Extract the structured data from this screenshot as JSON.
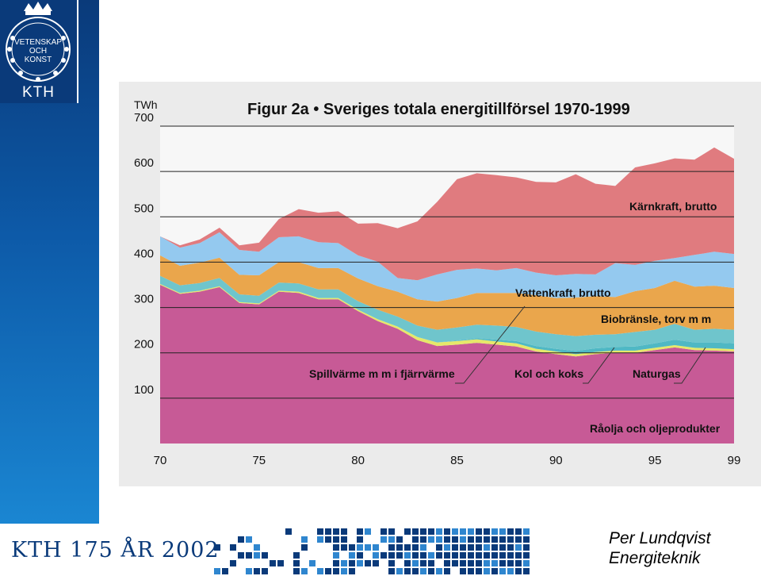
{
  "logo": {
    "ring_text": "VETENSKAP OCH KONST",
    "lines": [
      "VETENSKAP",
      "OCH",
      "KONST"
    ],
    "wordmark": "KTH"
  },
  "footer": {
    "banner": "KTH 175 ÅR 2002"
  },
  "author": {
    "name": "Per Lundqvist",
    "dept": "Energiteknik"
  },
  "colors": {
    "brand_blue": "#0a3a7a",
    "raolja": "#c75a96",
    "kol": "#e6e86a",
    "naturgas": "#4fb8c4",
    "spillvarme": "#6fc5cc",
    "biobransle": "#eaa64c",
    "vattenkraft": "#94c9ef",
    "karnkraft": "#e07b7f"
  },
  "chart_data": {
    "type": "area",
    "stacked": true,
    "title": "Figur 2a • Sveriges totala energitillförsel 1970-1999",
    "ylabel": "TWh",
    "xlabel": "",
    "ylim": [
      0,
      700
    ],
    "xlim": [
      1970,
      1999
    ],
    "grid": true,
    "x": [
      1970,
      1971,
      1972,
      1973,
      1974,
      1975,
      1976,
      1977,
      1978,
      1979,
      1980,
      1981,
      1982,
      1983,
      1984,
      1985,
      1986,
      1987,
      1988,
      1989,
      1990,
      1991,
      1992,
      1993,
      1994,
      1995,
      1996,
      1997,
      1998,
      1999
    ],
    "x_tick_labels": [
      {
        "x": 1970,
        "label": "70"
      },
      {
        "x": 1975,
        "label": "75"
      },
      {
        "x": 1980,
        "label": "80"
      },
      {
        "x": 1985,
        "label": "85"
      },
      {
        "x": 1990,
        "label": "90"
      },
      {
        "x": 1995,
        "label": "95"
      },
      {
        "x": 1999,
        "label": "99"
      }
    ],
    "y_ticks": [
      100,
      200,
      300,
      400,
      500,
      600,
      700
    ],
    "series": [
      {
        "name": "Råolja och oljeprodukter",
        "color": "#c75a96",
        "values": [
          350,
          330,
          335,
          345,
          310,
          307,
          335,
          332,
          318,
          318,
          292,
          270,
          253,
          228,
          215,
          218,
          222,
          218,
          214,
          203,
          197,
          192,
          197,
          200,
          200,
          206,
          212,
          206,
          205,
          203
        ]
      },
      {
        "name": "Kol och koks",
        "color": "#e6e86a",
        "values": [
          2,
          2,
          2,
          2,
          2,
          2,
          2,
          3,
          3,
          3,
          3,
          4,
          5,
          7,
          8,
          8,
          8,
          7,
          7,
          6,
          6,
          5,
          5,
          5,
          5,
          5,
          5,
          5,
          5,
          5
        ]
      },
      {
        "name": "Naturgas",
        "color": "#4fb8c4",
        "values": [
          0,
          0,
          0,
          0,
          0,
          0,
          0,
          0,
          0,
          0,
          0,
          0,
          0,
          0,
          0,
          1,
          2,
          4,
          5,
          6,
          6,
          7,
          8,
          8,
          9,
          10,
          12,
          12,
          13,
          13
        ]
      },
      {
        "name": "Spillvärme m m i fjärrvärme",
        "color": "#6fc5cc",
        "values": [
          18,
          17,
          17,
          18,
          17,
          17,
          18,
          18,
          19,
          19,
          19,
          21,
          22,
          25,
          28,
          29,
          30,
          31,
          31,
          32,
          32,
          33,
          30,
          28,
          32,
          30,
          35,
          28,
          30,
          30
        ]
      },
      {
        "name": "Biobränsle, torv m m",
        "color": "#eaa64c",
        "values": [
          45,
          43,
          45,
          45,
          43,
          45,
          45,
          47,
          47,
          47,
          50,
          52,
          55,
          58,
          62,
          65,
          70,
          72,
          75,
          80,
          80,
          85,
          85,
          82,
          90,
          92,
          95,
          95,
          95,
          92
        ]
      },
      {
        "name": "Vattenkraft, brutto",
        "color": "#94c9ef",
        "values": [
          42,
          40,
          43,
          56,
          55,
          52,
          55,
          57,
          57,
          55,
          51,
          54,
          30,
          42,
          60,
          62,
          54,
          50,
          55,
          50,
          50,
          52,
          48,
          75,
          58,
          60,
          50,
          70,
          75,
          75
        ]
      },
      {
        "name": "Kärnkraft, brutto",
        "color": "#e07b7f",
        "values": [
          0,
          5,
          8,
          10,
          10,
          20,
          40,
          60,
          65,
          70,
          70,
          85,
          110,
          130,
          160,
          200,
          210,
          210,
          200,
          200,
          205,
          220,
          200,
          170,
          215,
          215,
          220,
          210,
          230,
          210
        ]
      }
    ],
    "total": [
      457,
      437,
      450,
      476,
      437,
      443,
      495,
      517,
      509,
      512,
      485,
      486,
      475,
      490,
      533,
      583,
      596,
      592,
      587,
      577,
      576,
      594,
      573,
      568,
      609,
      618,
      629,
      626,
      653,
      628
    ],
    "annotations": [
      {
        "text": "Kärnkraft, brutto",
        "series": "Kärnkraft, brutto"
      },
      {
        "text": "Vattenkraft, brutto",
        "series": "Vattenkraft, brutto"
      },
      {
        "text": "Biobränsle, torv m m",
        "series": "Biobränsle, torv m m"
      },
      {
        "text": "Spillvärme m m i fjärrvärme",
        "series": "Spillvärme m m i fjärrvärme"
      },
      {
        "text": "Kol och koks",
        "series": "Kol och koks"
      },
      {
        "text": "Naturgas",
        "series": "Naturgas"
      },
      {
        "text": "Råolja och oljeprodukter",
        "series": "Råolja och oljeprodukter"
      }
    ]
  }
}
